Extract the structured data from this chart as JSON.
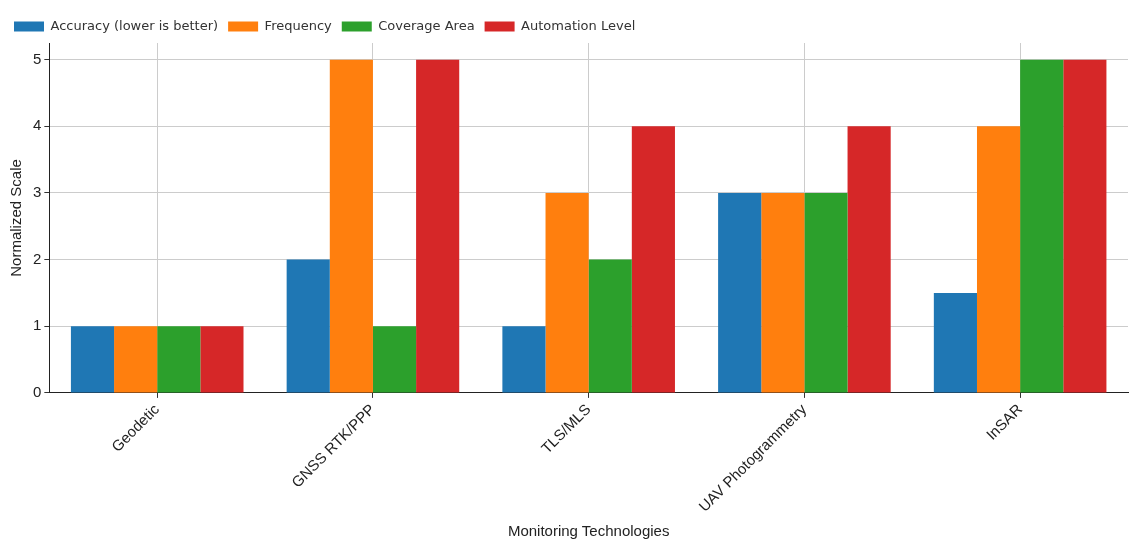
{
  "chart_data": {
    "type": "bar",
    "xlabel": "Monitoring Technologies",
    "ylabel": "Normalized Scale",
    "categories": [
      "Geodetic",
      "GNSS RTK/PPP",
      "TLS/MLS",
      "UAV Photogrammetry",
      "InSAR"
    ],
    "series": [
      {
        "name": "Accuracy (lower is better)",
        "color": "#1f77b4",
        "values": [
          1,
          2,
          1,
          3,
          1.5
        ]
      },
      {
        "name": "Frequency",
        "color": "#ff7f0e",
        "values": [
          1,
          5,
          3,
          3,
          4
        ]
      },
      {
        "name": "Coverage Area",
        "color": "#2ca02c",
        "values": [
          1,
          1,
          2,
          3,
          5
        ]
      },
      {
        "name": "Automation Level",
        "color": "#d62728",
        "values": [
          1,
          5,
          4,
          4,
          5
        ]
      }
    ],
    "ylim": [
      0,
      5.25
    ],
    "yticks": [
      0,
      1,
      2,
      3,
      4,
      5
    ],
    "grid": true,
    "legend": "top left"
  }
}
